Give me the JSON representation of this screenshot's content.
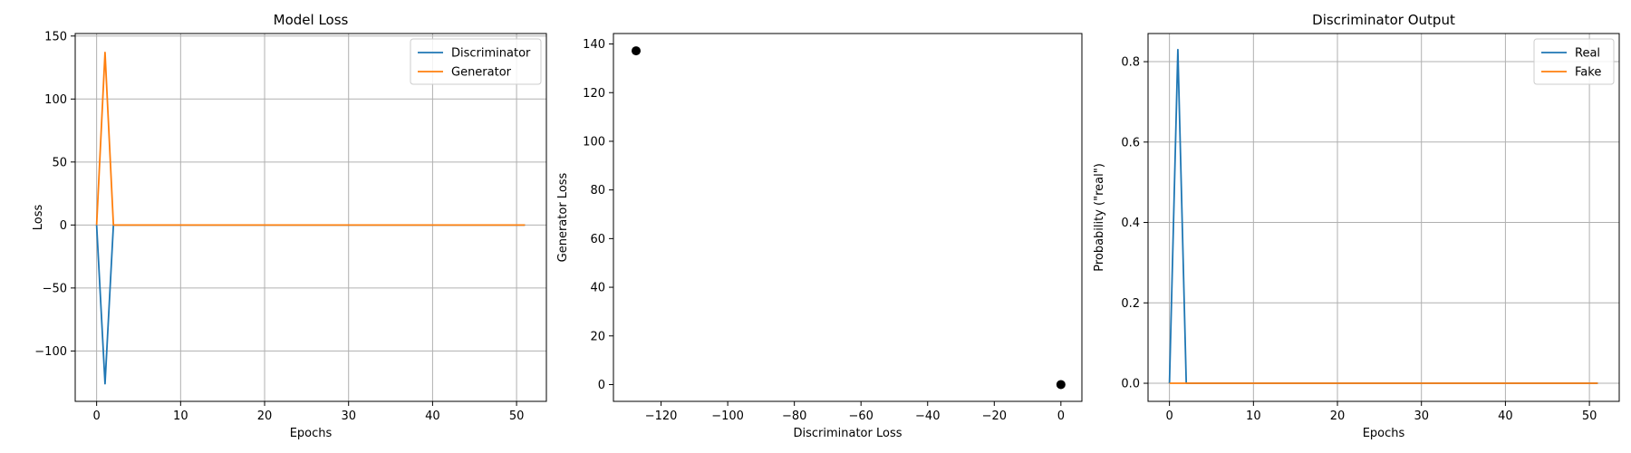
{
  "chart_data": [
    {
      "type": "line",
      "title": "Model Loss",
      "xlabel": "Epochs",
      "ylabel": "Loss",
      "xlim": [
        -2.55,
        53.55
      ],
      "ylim": [
        -140,
        152
      ],
      "xticks": [
        0,
        10,
        20,
        30,
        40,
        50
      ],
      "yticks": [
        -100,
        -50,
        0,
        50,
        100,
        150
      ],
      "grid": true,
      "legend_position": "top-right",
      "series": [
        {
          "name": "Discriminator",
          "color": "#1f77b4",
          "x": [
            0,
            1,
            2,
            3,
            4,
            5,
            6,
            7,
            8,
            9,
            10,
            11,
            12,
            13,
            14,
            15,
            16,
            17,
            18,
            19,
            20,
            21,
            22,
            23,
            24,
            25,
            26,
            27,
            28,
            29,
            30,
            31,
            32,
            33,
            34,
            35,
            36,
            37,
            38,
            39,
            40,
            41,
            42,
            43,
            44,
            45,
            46,
            47,
            48,
            49,
            50,
            51
          ],
          "y": [
            0,
            -126,
            0,
            0,
            0,
            0,
            0,
            0,
            0,
            0,
            0,
            0,
            0,
            0,
            0,
            0,
            0,
            0,
            0,
            0,
            0,
            0,
            0,
            0,
            0,
            0,
            0,
            0,
            0,
            0,
            0,
            0,
            0,
            0,
            0,
            0,
            0,
            0,
            0,
            0,
            0,
            0,
            0,
            0,
            0,
            0,
            0,
            0,
            0,
            0,
            0,
            0
          ]
        },
        {
          "name": "Generator",
          "color": "#ff7f0e",
          "x": [
            0,
            1,
            2,
            3,
            4,
            5,
            6,
            7,
            8,
            9,
            10,
            11,
            12,
            13,
            14,
            15,
            16,
            17,
            18,
            19,
            20,
            21,
            22,
            23,
            24,
            25,
            26,
            27,
            28,
            29,
            30,
            31,
            32,
            33,
            34,
            35,
            36,
            37,
            38,
            39,
            40,
            41,
            42,
            43,
            44,
            45,
            46,
            47,
            48,
            49,
            50,
            51
          ],
          "y": [
            0,
            137,
            0,
            0,
            0,
            0,
            0,
            0,
            0,
            0,
            0,
            0,
            0,
            0,
            0,
            0,
            0,
            0,
            0,
            0,
            0,
            0,
            0,
            0,
            0,
            0,
            0,
            0,
            0,
            0,
            0,
            0,
            0,
            0,
            0,
            0,
            0,
            0,
            0,
            0,
            0,
            0,
            0,
            0,
            0,
            0,
            0,
            0,
            0,
            0,
            0,
            0
          ]
        }
      ]
    },
    {
      "type": "scatter",
      "title": "",
      "xlabel": "Discriminator Loss",
      "ylabel": "Generator Loss",
      "xlim": [
        -134.3,
        6.3
      ],
      "ylim": [
        -6.9,
        144.3
      ],
      "xticks": [
        -120,
        -100,
        -80,
        -60,
        -40,
        -20,
        0
      ],
      "yticks": [
        0,
        20,
        40,
        60,
        80,
        100,
        120,
        140
      ],
      "grid": false,
      "color": "#000000",
      "points": [
        {
          "x": -127.5,
          "y": 137.2
        },
        {
          "x": 0,
          "y": 0
        }
      ]
    },
    {
      "type": "line",
      "title": "Discriminator Output",
      "xlabel": "Epochs",
      "ylabel": "Probability (\"real\")",
      "xlim": [
        -2.55,
        53.55
      ],
      "ylim": [
        -0.045,
        0.87
      ],
      "xticks": [
        0,
        10,
        20,
        30,
        40,
        50
      ],
      "yticks": [
        0.0,
        0.2,
        0.4,
        0.6,
        0.8
      ],
      "ytick_labels": [
        "0.0",
        "0.2",
        "0.4",
        "0.6",
        "0.8"
      ],
      "grid": true,
      "legend_position": "top-right",
      "series": [
        {
          "name": "Real",
          "color": "#1f77b4",
          "x": [
            0,
            1,
            2,
            3,
            4,
            5,
            6,
            7,
            8,
            9,
            10,
            11,
            12,
            13,
            14,
            15,
            16,
            17,
            18,
            19,
            20,
            21,
            22,
            23,
            24,
            25,
            26,
            27,
            28,
            29,
            30,
            31,
            32,
            33,
            34,
            35,
            36,
            37,
            38,
            39,
            40,
            41,
            42,
            43,
            44,
            45,
            46,
            47,
            48,
            49,
            50,
            51
          ],
          "y": [
            0,
            0.83,
            0,
            0,
            0,
            0,
            0,
            0,
            0,
            0,
            0,
            0,
            0,
            0,
            0,
            0,
            0,
            0,
            0,
            0,
            0,
            0,
            0,
            0,
            0,
            0,
            0,
            0,
            0,
            0,
            0,
            0,
            0,
            0,
            0,
            0,
            0,
            0,
            0,
            0,
            0,
            0,
            0,
            0,
            0,
            0,
            0,
            0,
            0,
            0,
            0,
            0
          ]
        },
        {
          "name": "Fake",
          "color": "#ff7f0e",
          "x": [
            0,
            1,
            2,
            3,
            4,
            5,
            6,
            7,
            8,
            9,
            10,
            11,
            12,
            13,
            14,
            15,
            16,
            17,
            18,
            19,
            20,
            21,
            22,
            23,
            24,
            25,
            26,
            27,
            28,
            29,
            30,
            31,
            32,
            33,
            34,
            35,
            36,
            37,
            38,
            39,
            40,
            41,
            42,
            43,
            44,
            45,
            46,
            47,
            48,
            49,
            50,
            51
          ],
          "y": [
            0,
            0,
            0,
            0,
            0,
            0,
            0,
            0,
            0,
            0,
            0,
            0,
            0,
            0,
            0,
            0,
            0,
            0,
            0,
            0,
            0,
            0,
            0,
            0,
            0,
            0,
            0,
            0,
            0,
            0,
            0,
            0,
            0,
            0,
            0,
            0,
            0,
            0,
            0,
            0,
            0,
            0,
            0,
            0,
            0,
            0,
            0,
            0,
            0,
            0,
            0,
            0
          ]
        }
      ]
    }
  ]
}
